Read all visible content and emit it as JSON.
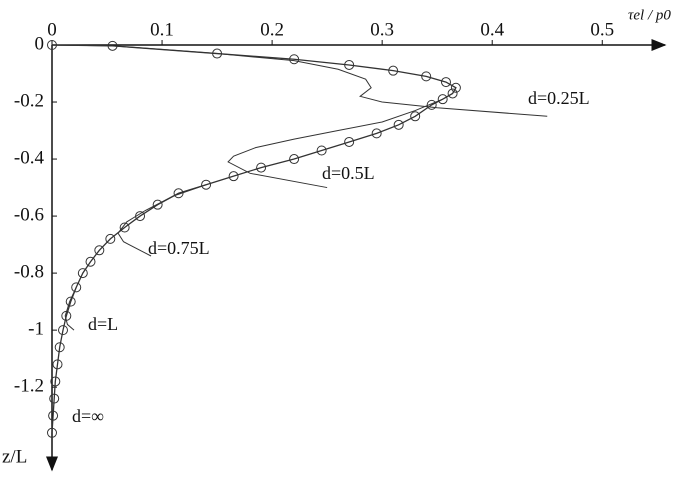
{
  "chart_data": {
    "type": "line",
    "xlabel": "τel / p0",
    "ylabel": "z/L",
    "xlim": [
      0,
      0.557
    ],
    "ylim": [
      0,
      -1.48
    ],
    "xticks": [
      0,
      0.1,
      0.2,
      0.3,
      0.4,
      0.5
    ],
    "yticks": [
      0,
      -0.2,
      -0.4,
      -0.6,
      -0.8,
      -1,
      -1.2
    ],
    "series": [
      {
        "name": "d=∞",
        "color": "#333333",
        "marker": "circle",
        "x": [
          0,
          0.055,
          0.15,
          0.22,
          0.27,
          0.31,
          0.34,
          0.358,
          0.367,
          0.364,
          0.355,
          0.345,
          0.33,
          0.315,
          0.295,
          0.27,
          0.245,
          0.22,
          0.19,
          0.165,
          0.14,
          0.115,
          0.096,
          0.08,
          0.066,
          0.053,
          0.043,
          0.035,
          0.028,
          0.022,
          0.017,
          0.013,
          0.01,
          0.007,
          0.005,
          0.003,
          0.002,
          0.001,
          0
        ],
        "y": [
          0,
          -0.003,
          -0.03,
          -0.05,
          -0.07,
          -0.09,
          -0.11,
          -0.13,
          -0.15,
          -0.17,
          -0.19,
          -0.21,
          -0.25,
          -0.28,
          -0.31,
          -0.34,
          -0.37,
          -0.4,
          -0.43,
          -0.46,
          -0.49,
          -0.52,
          -0.56,
          -0.6,
          -0.64,
          -0.68,
          -0.72,
          -0.76,
          -0.8,
          -0.85,
          -0.9,
          -0.95,
          -1.0,
          -1.06,
          -1.12,
          -1.18,
          -1.24,
          -1.3,
          -1.36
        ]
      },
      {
        "name": "d=0.25L",
        "color": "#333333",
        "x": [
          0,
          0.055,
          0.15,
          0.22,
          0.26,
          0.285,
          0.29,
          0.28,
          0.3,
          0.35,
          0.45
        ],
        "y": [
          0,
          -0.003,
          -0.03,
          -0.055,
          -0.085,
          -0.12,
          -0.15,
          -0.18,
          -0.2,
          -0.22,
          -0.25
        ]
      },
      {
        "name": "d=0.5L",
        "color": "#333333",
        "x": [
          0.355,
          0.33,
          0.3,
          0.26,
          0.22,
          0.185,
          0.165,
          0.16,
          0.18,
          0.25
        ],
        "y": [
          -0.19,
          -0.23,
          -0.27,
          -0.3,
          -0.33,
          -0.36,
          -0.39,
          -0.41,
          -0.45,
          -0.5
        ]
      },
      {
        "name": "d=0.75L",
        "color": "#333333",
        "x": [
          0.14,
          0.11,
          0.085,
          0.068,
          0.06,
          0.065,
          0.08,
          0.09
        ],
        "y": [
          -0.49,
          -0.53,
          -0.58,
          -0.62,
          -0.66,
          -0.69,
          -0.72,
          -0.74
        ]
      },
      {
        "name": "d=L",
        "color": "#333333",
        "x": [
          0.022,
          0.016,
          0.012,
          0.014,
          0.02
        ],
        "y": [
          -0.85,
          -0.9,
          -0.95,
          -0.98,
          -1.0
        ]
      }
    ]
  }
}
